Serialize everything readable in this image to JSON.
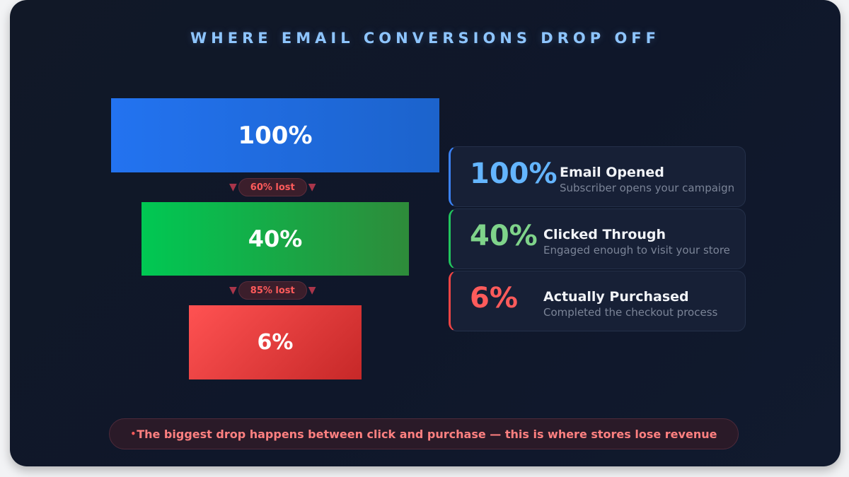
{
  "title": "WHERE EMAIL CONVERSIONS DROP OFF",
  "funnel": [
    {
      "percent": "100%",
      "color": "#2373f0"
    },
    {
      "percent": "40%",
      "color": "#00c853"
    },
    {
      "percent": "6%",
      "color": "#ff5252"
    }
  ],
  "drops": [
    "60% lost",
    "85% lost"
  ],
  "stages": [
    {
      "value": "100%",
      "label": "Email Opened",
      "desc": "Subscriber opens your campaign",
      "accent": "#3b82f6",
      "value_color": "#64b5ff"
    },
    {
      "value": "40%",
      "label": "Clicked Through",
      "desc": "Engaged enough to visit your store",
      "accent": "#22c55e",
      "value_color": "#7fd38a"
    },
    {
      "value": "6%",
      "label": "Actually Purchased",
      "desc": "Completed the checkout process",
      "accent": "#ef4444",
      "value_color": "#ff5b5b"
    }
  ],
  "footer": {
    "bullet": "•",
    "text": "The biggest drop happens between click and purchase — this is where stores lose revenue"
  }
}
